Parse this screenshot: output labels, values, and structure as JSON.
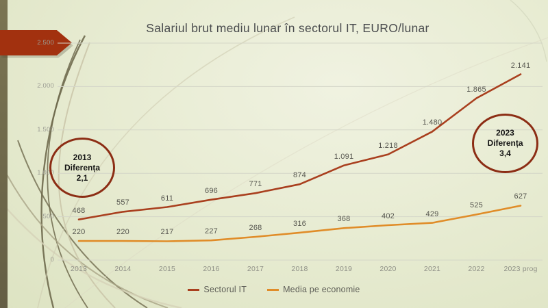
{
  "slide": {
    "title": "Salariul brut mediu lunar  în sectorul IT, EURO/lunar"
  },
  "chart_data": {
    "type": "line",
    "title": "Salariul brut mediu lunar  în sectorul IT, EURO/lunar",
    "categories": [
      "2013",
      "2014",
      "2015",
      "2016",
      "2017",
      "2018",
      "2019",
      "2020",
      "2021",
      "2022",
      "2023 prog"
    ],
    "series": [
      {
        "name": "Sectorul IT",
        "color": "#A93F1E",
        "values": [
          468,
          557,
          611,
          696,
          771,
          874,
          1091,
          1218,
          1480,
          1865,
          2141
        ],
        "display_labels": [
          "468",
          "557",
          "611",
          "696",
          "771",
          "874",
          "1.091",
          "1.218",
          "1.480",
          "1.865",
          "2.141"
        ]
      },
      {
        "name": "Media pe economie",
        "color": "#E08C28",
        "values": [
          220,
          220,
          217,
          227,
          268,
          316,
          368,
          402,
          429,
          525,
          627
        ],
        "display_labels": [
          "220",
          "220",
          "217",
          "227",
          "268",
          "316",
          "368",
          "402",
          "429",
          "525",
          "627"
        ]
      }
    ],
    "y_axis": {
      "ticks": [
        0,
        500,
        1000,
        1500,
        2000,
        2500
      ],
      "tick_labels": [
        "0",
        "500",
        "1.000",
        "1.500",
        "2.000",
        "2.500"
      ],
      "range": [
        0,
        2500
      ]
    },
    "grid": true,
    "legend_position": "bottom"
  },
  "annotations": [
    {
      "year": "2013",
      "label": "Diferența",
      "value": "2,1"
    },
    {
      "year": "2023",
      "label": "Diferența",
      "value": "3,4"
    }
  ],
  "colors": {
    "accent_red": "#A2310F",
    "circle_stroke": "#8C2D14",
    "gridline": "#D4D6C8",
    "data_label": "#56564F"
  }
}
